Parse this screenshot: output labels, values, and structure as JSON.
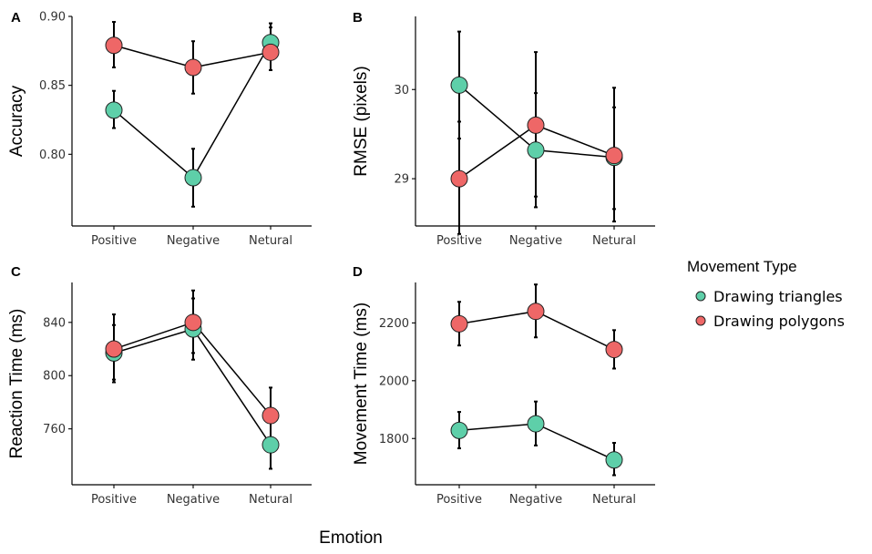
{
  "x_axis_title": "Emotion",
  "legend": {
    "title": "Movement Type",
    "items": [
      {
        "label": "Drawing triangles",
        "color": "#5ECFA9"
      },
      {
        "label": "Drawing polygons",
        "color": "#EE6767"
      }
    ]
  },
  "chart_data": [
    {
      "panel": "A",
      "type": "line",
      "categories": [
        "Positive",
        "Negative",
        "Netural"
      ],
      "ylabel": "Accuracy",
      "ylim": [
        0.748,
        0.9
      ],
      "yticks": [
        0.8,
        0.85,
        0.9
      ],
      "ytick_labels": [
        "0.80",
        "0.85",
        "0.90"
      ],
      "series": [
        {
          "name": "Drawing triangles",
          "values": [
            0.832,
            0.783,
            0.881
          ],
          "err_low": [
            0.819,
            0.762,
            0.87
          ],
          "err_high": [
            0.846,
            0.804,
            0.892
          ]
        },
        {
          "name": "Drawing polygons",
          "values": [
            0.879,
            0.863,
            0.874
          ],
          "err_low": [
            0.863,
            0.844,
            0.861
          ],
          "err_high": [
            0.896,
            0.882,
            0.895
          ]
        }
      ]
    },
    {
      "panel": "B",
      "type": "line",
      "categories": [
        "Positive",
        "Negative",
        "Netural"
      ],
      "ylabel": "RMSE (pixels)",
      "ylim": [
        28.47,
        30.82
      ],
      "yticks": [
        29,
        30
      ],
      "ytick_labels": [
        "29",
        "30"
      ],
      "series": [
        {
          "name": "Drawing triangles",
          "values": [
            30.05,
            29.32,
            29.24
          ],
          "err_low": [
            29.45,
            28.68,
            28.66
          ],
          "err_high": [
            30.65,
            29.96,
            29.8
          ]
        },
        {
          "name": "Drawing polygons",
          "values": [
            29.0,
            29.6,
            29.26
          ],
          "err_low": [
            28.38,
            28.8,
            28.52
          ],
          "err_high": [
            29.64,
            30.42,
            30.02
          ]
        }
      ]
    },
    {
      "panel": "C",
      "type": "line",
      "categories": [
        "Positive",
        "Negative",
        "Netural"
      ],
      "ylabel": "Reaction Time (ms)",
      "ylim": [
        718,
        870
      ],
      "yticks": [
        760,
        800,
        840
      ],
      "ytick_labels": [
        "760",
        "800",
        "840"
      ],
      "series": [
        {
          "name": "Drawing triangles",
          "values": [
            817,
            835,
            748
          ],
          "err_low": [
            795,
            812,
            730
          ],
          "err_high": [
            838,
            858,
            768
          ]
        },
        {
          "name": "Drawing polygons",
          "values": [
            820,
            840,
            770
          ],
          "err_low": [
            797,
            817,
            748
          ],
          "err_high": [
            846,
            864,
            791
          ]
        }
      ]
    },
    {
      "panel": "D",
      "type": "line",
      "categories": [
        "Positive",
        "Negative",
        "Netural"
      ],
      "ylabel": "Movement Time (ms)",
      "ylim": [
        1640,
        2340
      ],
      "yticks": [
        1800,
        2000,
        2200
      ],
      "ytick_labels": [
        "1800",
        "2000",
        "2200"
      ],
      "series": [
        {
          "name": "Drawing triangles",
          "values": [
            1828,
            1851,
            1726
          ],
          "err_low": [
            1766,
            1776,
            1673
          ],
          "err_high": [
            1892,
            1928,
            1785
          ]
        },
        {
          "name": "Drawing polygons",
          "values": [
            2197,
            2240,
            2108
          ],
          "err_low": [
            2122,
            2150,
            2042
          ],
          "err_high": [
            2273,
            2333,
            2175
          ]
        }
      ]
    }
  ]
}
